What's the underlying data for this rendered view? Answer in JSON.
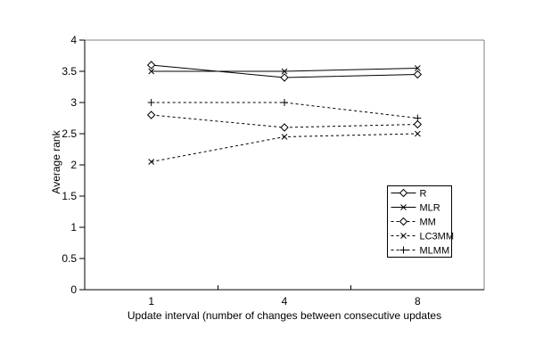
{
  "figure": {
    "background": "#ffffff",
    "axis_color": "#000000",
    "box_color": "#808080",
    "series_color": "#000000"
  },
  "chart_data": {
    "type": "line",
    "title": "",
    "xlabel": "Update interval (number of changes between consecutive updates",
    "ylabel": "Average rank",
    "categories": [
      "1",
      "4",
      "8"
    ],
    "series": [
      {
        "name": "R",
        "values": [
          3.6,
          3.4,
          3.45
        ],
        "line": "solid",
        "marker": "diamond"
      },
      {
        "name": "MLR",
        "values": [
          3.5,
          3.5,
          3.55
        ],
        "line": "solid",
        "marker": "x"
      },
      {
        "name": "MM",
        "values": [
          2.8,
          2.6,
          2.65
        ],
        "line": "dashed",
        "marker": "diamond"
      },
      {
        "name": "LC3MM",
        "values": [
          2.05,
          2.45,
          2.5
        ],
        "line": "dashed",
        "marker": "x"
      },
      {
        "name": "MLMM",
        "values": [
          3.0,
          3.0,
          2.75
        ],
        "line": "dashed",
        "marker": "plus"
      }
    ],
    "ylim": [
      0,
      4
    ],
    "yticks": [
      "0",
      "0.5",
      "1",
      "1.5",
      "2",
      "2.5",
      "3",
      "3.5",
      "4"
    ],
    "grid": false,
    "legend_position": "inside-lower-right",
    "legend_entries": [
      "R",
      "MLR",
      "MM",
      "LC3MM",
      "MLMM"
    ]
  }
}
